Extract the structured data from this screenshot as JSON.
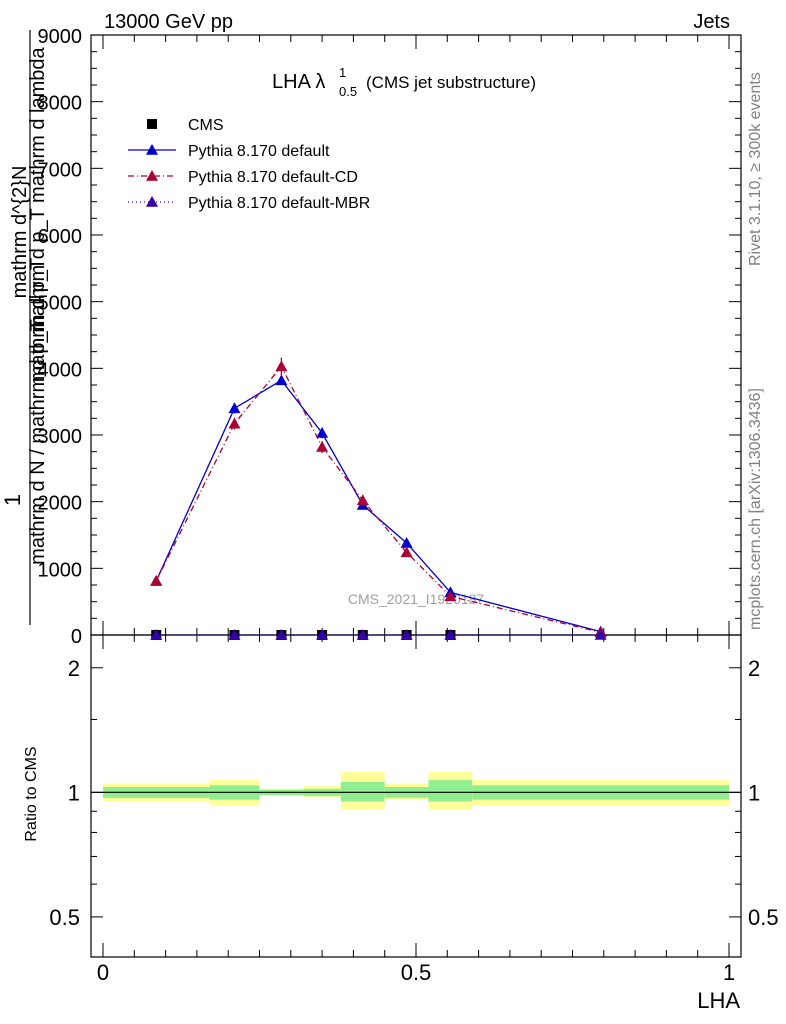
{
  "header": {
    "left": "13000 GeV pp",
    "right": "Jets"
  },
  "side": {
    "rivet": "Rivet 3.1.10, ≥ 300k events",
    "site": "mcplots.cern.ch [arXiv:1306.3436]"
  },
  "watermark": "CMS_2021_I1920187",
  "title": {
    "main": "LHA λ",
    "sup": "1",
    "sub": "0.5",
    "suffix": "(CMS jet substructure)"
  },
  "ylabel_top": {
    "one": "1",
    "numerator": "mathrm d^{2}N",
    "denominator": "mathrm d N / mathrm d p_T",
    "overlay1": "mathrm d p_T mathrm d lambda",
    "overlay2": "mathrm d p_T"
  },
  "ylabel_bottom": "Ratio to CMS",
  "xlabel": "LHA",
  "legend": [
    {
      "label": "CMS",
      "marker": "square",
      "color": "#000000",
      "line": "none"
    },
    {
      "label": "Pythia 8.170 default",
      "marker": "triangle",
      "color": "#0000cc",
      "line": "solid"
    },
    {
      "label": "Pythia 8.170 default-CD",
      "marker": "triangle",
      "color": "#aa0033",
      "line": "dashdot"
    },
    {
      "label": "Pythia 8.170 default-MBR",
      "marker": "triangle",
      "color": "#3300aa",
      "line": "dotted"
    }
  ],
  "chart_data": [
    {
      "type": "line",
      "panel": "main",
      "xlim": [
        0,
        1
      ],
      "ylim": [
        0,
        9000
      ],
      "ytick_labels": [
        "0",
        "1000",
        "2000",
        "3000",
        "4000",
        "5000",
        "6000",
        "7000",
        "8000",
        "9000"
      ],
      "xtick_labels": [
        "0",
        "0.5",
        "1"
      ],
      "x": [
        0.085,
        0.21,
        0.285,
        0.35,
        0.415,
        0.485,
        0.555,
        0.795
      ],
      "series": [
        {
          "name": "CMS",
          "color": "#000000",
          "values": [
            0,
            0,
            0,
            0,
            0,
            0,
            0,
            null
          ]
        },
        {
          "name": "Pythia 8.170 default",
          "color": "#0000cc",
          "values": [
            810,
            3400,
            3820,
            3030,
            1950,
            1380,
            640,
            50
          ],
          "errors": [
            25,
            80,
            70,
            80,
            50,
            50,
            30,
            10
          ]
        },
        {
          "name": "Pythia 8.170 default-CD",
          "color": "#aa0033",
          "values": [
            810,
            3170,
            4030,
            2820,
            2020,
            1240,
            580,
            40
          ],
          "errors": [
            30,
            90,
            130,
            90,
            80,
            60,
            40,
            10
          ]
        },
        {
          "name": "Pythia 8.170 default-MBR",
          "color": "#3300aa",
          "values": [
            0,
            0,
            0,
            0,
            0,
            0,
            0,
            0
          ]
        }
      ]
    },
    {
      "type": "area",
      "panel": "ratio",
      "xlim": [
        0,
        1
      ],
      "ylim": [
        0.4,
        2.4
      ],
      "ytick_labels": [
        "0.5",
        "1",
        "2"
      ],
      "bins": [
        [
          0,
          0.17
        ],
        [
          0.17,
          0.25
        ],
        [
          0.25,
          0.32
        ],
        [
          0.32,
          0.38
        ],
        [
          0.38,
          0.45
        ],
        [
          0.45,
          0.52
        ],
        [
          0.52,
          0.59
        ],
        [
          0.59,
          1.0
        ]
      ],
      "band_inner": [
        [
          0.97,
          1.03
        ],
        [
          0.96,
          1.04
        ],
        [
          0.985,
          1.015
        ],
        [
          0.98,
          1.02
        ],
        [
          0.95,
          1.06
        ],
        [
          0.97,
          1.03
        ],
        [
          0.95,
          1.07
        ],
        [
          0.96,
          1.04
        ]
      ],
      "band_outer": [
        [
          0.95,
          1.05
        ],
        [
          0.93,
          1.07
        ],
        [
          0.98,
          1.02
        ],
        [
          0.975,
          1.035
        ],
        [
          0.91,
          1.12
        ],
        [
          0.96,
          1.05
        ],
        [
          0.91,
          1.12
        ],
        [
          0.93,
          1.07
        ]
      ],
      "inner_color": "#90ee90",
      "outer_color": "#ffff99"
    }
  ]
}
